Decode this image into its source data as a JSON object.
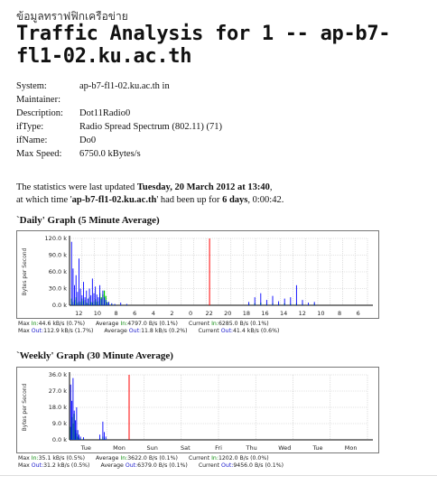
{
  "header": {
    "thai_text": "ข้อมูลทราฟฟิกเครือข่าย",
    "title": "Traffic Analysis for 1 -- ap-b7-fl1-02.ku.ac.th"
  },
  "info": [
    {
      "key": "System:",
      "value": "ap-b7-fl1-02.ku.ac.th in"
    },
    {
      "key": "Maintainer:",
      "value": ""
    },
    {
      "key": "Description:",
      "value": "Dot11Radio0"
    },
    {
      "key": "ifType:",
      "value": "Radio Spread Spectrum (802.11) (71)"
    },
    {
      "key": "ifName:",
      "value": "Do0"
    },
    {
      "key": "Max Speed:",
      "value": "6750.0 kBytes/s"
    }
  ],
  "updated": {
    "prefix": "The statistics were last updated ",
    "datetime": "Tuesday, 20 March 2012 at 13:40",
    "middle": ",",
    "line2_prefix": "at which time '",
    "host": "ap-b7-fl1-02.ku.ac.th",
    "line2_middle": "' had been up for ",
    "uptime": "6 days",
    "line2_suffix": ", 0:00:42."
  },
  "daily": {
    "heading": "`Daily' Graph (5 Minute Average)",
    "ylabel": "Bytes per Second",
    "yticks": [
      "120.0 k",
      "90.0 k",
      "60.0 k",
      "30.0 k",
      "0.0 k"
    ],
    "xticks": [
      "12",
      "10",
      "8",
      "6",
      "4",
      "2",
      "0",
      "22",
      "20",
      "18",
      "16",
      "14",
      "12",
      "10",
      "8",
      "6"
    ],
    "stats_line1": {
      "max_label": "Max",
      "max_in_label": "In:",
      "max_in": "44.6 kB/s (0.7%)",
      "avg_label": "Average",
      "avg_in_label": "In:",
      "avg_in": "4797.0 B/s (0.1%)",
      "cur_label": "Current",
      "cur_in_label": "In:",
      "cur_in": "6285.0 B/s (0.1%)"
    },
    "stats_line2": {
      "max_label": "Max",
      "max_out_label": "Out:",
      "max_out": "112.9 kB/s (1.7%)",
      "avg_label": "Average",
      "avg_out_label": "Out:",
      "avg_out": "11.8 kB/s (0.2%)",
      "cur_label": "Current",
      "cur_out_label": "Out:",
      "cur_out": "41.4 kB/s (0.6%)"
    }
  },
  "weekly": {
    "heading": "`Weekly' Graph (30 Minute Average)",
    "ylabel": "Bytes per Second",
    "yticks": [
      "36.0 k",
      "27.0 k",
      "18.0 k",
      "9.0 k",
      "0.0 k"
    ],
    "xticks": [
      "Tue",
      "Mon",
      "Sun",
      "Sat",
      "Fri",
      "Thu",
      "Wed",
      "Tue",
      "Mon"
    ],
    "stats_line1": {
      "max_label": "Max",
      "max_in_label": "In:",
      "max_in": "35.1 kB/s (0.5%)",
      "avg_label": "Average",
      "avg_in_label": "In:",
      "avg_in": "3622.0 B/s (0.1%)",
      "cur_label": "Current",
      "cur_in_label": "In:",
      "cur_in": "1202.0 B/s (0.0%)"
    },
    "stats_line2": {
      "max_label": "Max",
      "max_out_label": "Out:",
      "max_out": "31.2 kB/s (0.5%)",
      "avg_label": "Average",
      "avg_out_label": "Out:",
      "avg_out": "6379.0 B/s (0.1%)",
      "cur_label": "Current",
      "cur_out_label": "Out:",
      "cur_out": "9456.0 B/s (0.1%)"
    }
  },
  "colors": {
    "in": "#00cc00",
    "out": "#0000ff",
    "now_marker": "#ff0000",
    "grid": "#c8c8c8"
  }
}
